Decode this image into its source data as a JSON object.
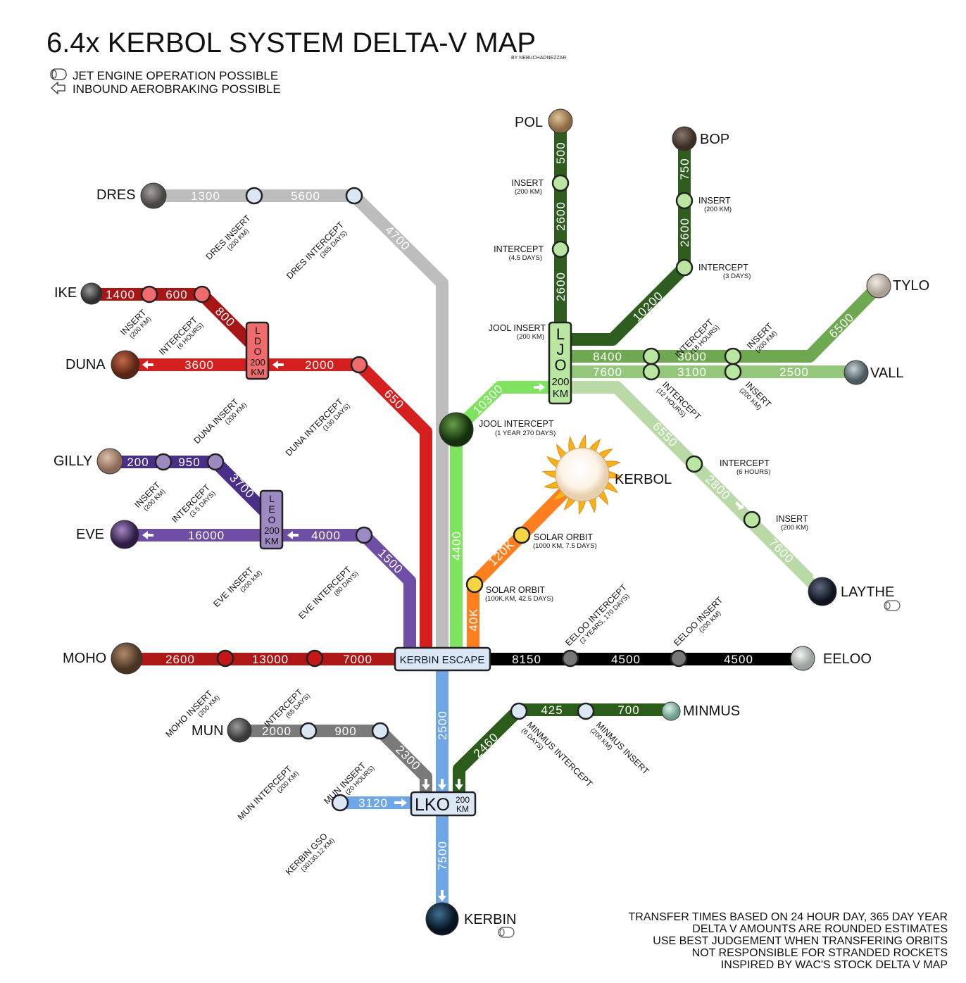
{
  "title": "6.4x KERBOL SYSTEM DELTA-V MAP",
  "byline": "BY NEBUCHADNEZZAR",
  "legend": {
    "jet": {
      "icon": "jet-engine-icon",
      "label": "JET ENGINE OPERATION POSSIBLE"
    },
    "aero": {
      "icon": "aerobrake-arrow-icon",
      "label": "INBOUND AEROBRAKING POSSIBLE"
    }
  },
  "bodies": {
    "pol": "POL",
    "bop": "BOP",
    "tylo": "TYLO",
    "vall": "VALL",
    "laythe": "LAYTHE",
    "kerbol": "KERBOL",
    "eeloo": "EELOO",
    "minmus": "MINMUS",
    "kerbin": "KERBIN",
    "mun": "MUN",
    "moho": "MOHO",
    "eve": "EVE",
    "gilly": "GILLY",
    "duna": "DUNA",
    "ike": "IKE",
    "dres": "DRES"
  },
  "hubs": {
    "kerbin_escape": "KERBIN ESCAPE",
    "lko": "LKO",
    "lko_alt_a": "200",
    "lko_alt_b": "KM",
    "ljo": [
      "L",
      "J",
      "O",
      "200",
      "KM"
    ],
    "ldo": [
      "L",
      "D",
      "O",
      "200",
      "KM"
    ],
    "leo": [
      "L",
      "E",
      "O",
      "200",
      "KM"
    ]
  },
  "dv": {
    "pol_500": "500",
    "pol_2600a": "2600",
    "pol_2600b": "2600",
    "bop_750": "750",
    "bop_2600": "2600",
    "bop_10200": "10200",
    "tylo_8400": "8400",
    "tylo_3000": "3000",
    "tylo_6500": "6500",
    "vall_7600": "7600",
    "vall_3100": "3100",
    "vall_2500": "2500",
    "laythe_6550": "6550",
    "laythe_2800": "2800",
    "laythe_7600": "7600",
    "jool_10300": "10300",
    "jool_4400": "4400",
    "kerbol_40k": "40K",
    "kerbol_120k": "120K",
    "eeloo_8150": "8150",
    "eeloo_4500a": "4500",
    "eeloo_4500b": "4500",
    "minmus_2460": "2460",
    "minmus_425": "425",
    "minmus_700": "700",
    "lko_2500": "2500",
    "kerbin_7500": "7500",
    "gso_3120": "3120",
    "mun_2000": "2000",
    "mun_900": "900",
    "mun_2300": "2300",
    "moho_2600": "2600",
    "moho_13000": "13000",
    "moho_7000": "7000",
    "eve_16000": "16000",
    "eve_4000": "4000",
    "eve_1500": "1500",
    "gilly_200": "200",
    "gilly_950": "950",
    "gilly_3700": "3700",
    "duna_3600": "3600",
    "duna_2000": "2000",
    "duna_650": "650",
    "ike_1400": "1400",
    "ike_600": "600",
    "ike_800": "800",
    "dres_1300": "1300",
    "dres_5600": "5600",
    "dres_4700": "4700"
  },
  "nodes": {
    "pol_insert": {
      "label": "INSERT",
      "sub": "(200 KM)"
    },
    "pol_intercept": {
      "label": "INTERCEPT",
      "sub": "(4.5 DAYS)"
    },
    "bop_insert": {
      "label": "INSERT",
      "sub": "(200 KM)"
    },
    "bop_intercept": {
      "label": "INTERCEPT",
      "sub": "(3 DAYS)"
    },
    "jool_insert": {
      "label": "JOOL INSERT",
      "sub": "(200 KM)"
    },
    "tylo_intercept": {
      "label": "INTERCEPT",
      "sub": "(18 HOURS)"
    },
    "tylo_insert": {
      "label": "INSERT",
      "sub": "(200 KM)"
    },
    "vall_intercept": {
      "label": "INTERCEPT",
      "sub": "(12 HOURS)"
    },
    "vall_insert": {
      "label": "INSERT",
      "sub": "(200 KM)"
    },
    "laythe_intercept": {
      "label": "INTERCEPT",
      "sub": "(6 HOURS)"
    },
    "laythe_insert": {
      "label": "INSERT",
      "sub": "(200 KM)"
    },
    "jool_intercept": {
      "label": "JOOL INTERCEPT",
      "sub": "(1 YEAR 270 DAYS)"
    },
    "solar_orbit_1": {
      "label": "SOLAR ORBIT",
      "sub": "(1000 KM, 7.5 DAYS)"
    },
    "solar_orbit_2": {
      "label": "SOLAR ORBIT",
      "sub": "(100K,KM, 42.5 DAYS)"
    },
    "eeloo_intercept": {
      "label": "EELOO INTERCEPT",
      "sub": "(2 YEARS, 170 DAYS)"
    },
    "eeloo_insert": {
      "label": "EELOO INSERT",
      "sub": "(200 KM)"
    },
    "minmus_intercept": {
      "label": "MINMUS INTERCEPT",
      "sub": "(6 DAYS)"
    },
    "minmus_insert": {
      "label": "MINMUS INSERT",
      "sub": "(200 KM)"
    },
    "mun_intercept": {
      "label": "MUN INTERCEPT",
      "sub": "(200 KM)"
    },
    "mun_insert": {
      "label": "MUN INSERT",
      "sub": "(20 HOURS)"
    },
    "kerbin_gso": {
      "label": "KERBIN GSO",
      "sub": "(30130.12 KM)"
    },
    "moho_insert": {
      "label": "MOHO INSERT",
      "sub": "(200 KM)"
    },
    "moho_intercept": {
      "label": "INTERCEPT",
      "sub": "(65 DAYS)"
    },
    "eve_insert": {
      "label": "EVE INSERT",
      "sub": "(200 KM)"
    },
    "eve_intercept": {
      "label": "EVE INTERCEPT",
      "sub": "(80 DAYS)"
    },
    "gilly_insert": {
      "label": "INSERT",
      "sub": "(200 KM)"
    },
    "gilly_intercept": {
      "label": "INTERCEPT",
      "sub": "(3.5 DAYS)"
    },
    "duna_insert": {
      "label": "DUNA INSERT",
      "sub": "(200 KM)"
    },
    "duna_intercept": {
      "label": "DUNA INTERCEPT",
      "sub": "(130 DAYS)"
    },
    "ike_insert": {
      "label": "INSERT",
      "sub": "(200 KM)"
    },
    "ike_intercept": {
      "label": "INTERCEPT",
      "sub": "(6 HOURS)"
    },
    "dres_insert": {
      "label": "DRES INSERT",
      "sub": "(200 KM)"
    },
    "dres_intercept": {
      "label": "DRES INTERCEPT",
      "sub": "(265 DAYS)"
    }
  },
  "footer": [
    "TRANSFER TIMES BASED ON 24 HOUR DAY, 365 DAY YEAR",
    "DELTA V AMOUNTS ARE ROUNDED ESTIMATES",
    "USE BEST JUDGEMENT WHEN TRANSFERING ORBITS",
    "NOT RESPONSIBLE FOR STRANDED ROCKETS",
    "INSPIRED BY WAC'S STOCK DELTA V MAP"
  ],
  "colors": {
    "jool_dark": "#2f5c1f",
    "jool_mid": "#4f8c35",
    "jool_light": "#6ea850",
    "jool_pale": "#b9d9a6",
    "jool_bright": "#7ee35e",
    "kerbol": "#ff7f1f",
    "eeloo": "#000000",
    "minmus": "#2b5c1a",
    "kerbin": "#6fa6e8",
    "mun": "#7a7a7a",
    "moho": "#b01818",
    "eve": "#6f4fa6",
    "gilly": "#4a2f8a",
    "duna": "#d51f1f",
    "ike": "#a81515",
    "dres": "#bdbdbd"
  }
}
